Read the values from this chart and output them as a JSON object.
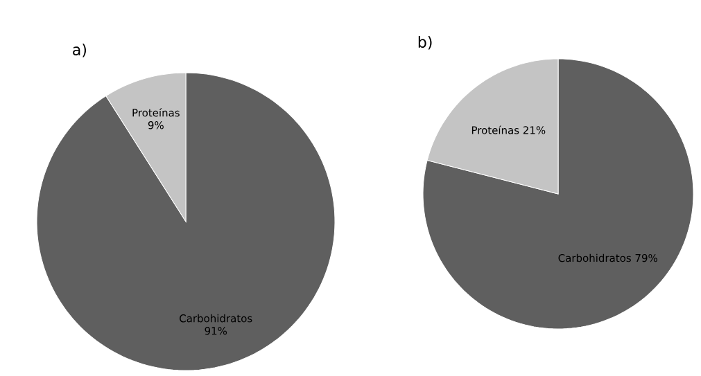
{
  "chart_data": [
    {
      "type": "pie",
      "title": "a)",
      "categories": [
        "Carbohidratos",
        "Proteínas"
      ],
      "values": [
        91,
        9
      ],
      "colors": [
        "#5f5f5f",
        "#c4c4c4"
      ],
      "value_labels": [
        "91%",
        "9%"
      ]
    },
    {
      "type": "pie",
      "title": "b)",
      "categories": [
        "Carbohidratos",
        "Proteínas"
      ],
      "values": [
        79,
        21
      ],
      "colors": [
        "#5f5f5f",
        "#c4c4c4"
      ],
      "value_labels": [
        "79%",
        "21%"
      ]
    }
  ]
}
